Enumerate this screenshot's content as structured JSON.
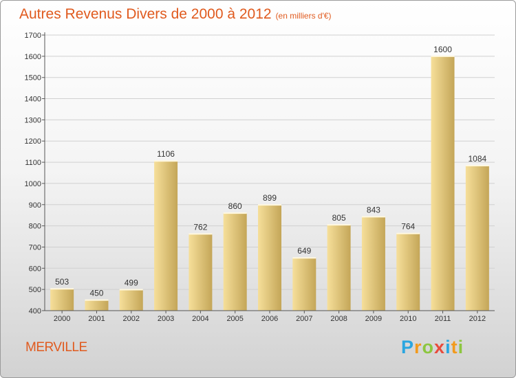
{
  "title": "Autres Revenus Divers de 2000 à 2012",
  "subtitle": "(en milliers d'€)",
  "location": "MERVILLE",
  "logo": {
    "letters": [
      {
        "ch": "P",
        "color": "#2aa6e0"
      },
      {
        "ch": "r",
        "color": "#f29a1d"
      },
      {
        "ch": "o",
        "color": "#8cc63f"
      },
      {
        "ch": "x",
        "color": "#e84b3c"
      },
      {
        "ch": "i",
        "color": "#2aa6e0"
      },
      {
        "ch": "t",
        "color": "#f29a1d"
      },
      {
        "ch": "i",
        "color": "#8cc63f"
      }
    ]
  },
  "chart_data": {
    "type": "bar",
    "categories": [
      "2000",
      "2001",
      "2002",
      "2003",
      "2004",
      "2005",
      "2006",
      "2007",
      "2008",
      "2009",
      "2010",
      "2011",
      "2012"
    ],
    "values": [
      503,
      450,
      499,
      1106,
      762,
      860,
      899,
      649,
      805,
      843,
      764,
      1600,
      1084
    ],
    "data_labels": [
      "503",
      "450",
      "499",
      "1106",
      "762",
      "860",
      "899",
      "649",
      "805",
      "843",
      "764",
      "1600",
      "1084"
    ],
    "yticks": [
      400,
      500,
      600,
      700,
      800,
      900,
      1000,
      1100,
      1200,
      1300,
      1400,
      1500,
      1600,
      1700
    ],
    "ylim": [
      400,
      1700
    ],
    "grid": true,
    "bar_color_light": "#f6df9a",
    "bar_color_dark": "#c4a658",
    "grid_color": "#d0d0d0"
  }
}
